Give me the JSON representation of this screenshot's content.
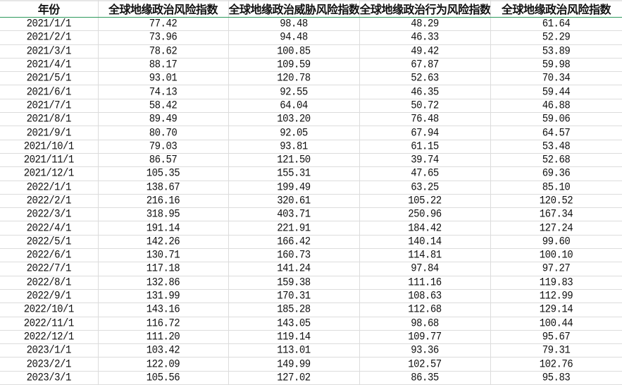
{
  "headers": [
    "年份",
    "全球地缘政治风险指数",
    "全球地缘政治威胁风险指数",
    "全球地缘政治行为风险指数",
    "全球地缘政治风险指数"
  ],
  "rows": [
    [
      "2021/1/1",
      "77.42",
      "98.48",
      "48.29",
      "61.64"
    ],
    [
      "2021/2/1",
      "73.96",
      "94.48",
      "46.33",
      "52.29"
    ],
    [
      "2021/3/1",
      "78.62",
      "100.85",
      "49.42",
      "53.89"
    ],
    [
      "2021/4/1",
      "88.17",
      "109.59",
      "67.87",
      "59.98"
    ],
    [
      "2021/5/1",
      "93.01",
      "120.78",
      "52.63",
      "70.34"
    ],
    [
      "2021/6/1",
      "74.13",
      "92.55",
      "46.35",
      "59.44"
    ],
    [
      "2021/7/1",
      "58.42",
      "64.04",
      "50.72",
      "46.88"
    ],
    [
      "2021/8/1",
      "89.49",
      "103.20",
      "76.48",
      "59.06"
    ],
    [
      "2021/9/1",
      "80.70",
      "92.05",
      "67.94",
      "64.57"
    ],
    [
      "2021/10/1",
      "79.03",
      "93.81",
      "61.15",
      "53.48"
    ],
    [
      "2021/11/1",
      "86.57",
      "121.50",
      "39.74",
      "52.68"
    ],
    [
      "2021/12/1",
      "105.35",
      "155.31",
      "47.65",
      "69.36"
    ],
    [
      "2022/1/1",
      "138.67",
      "199.49",
      "63.25",
      "85.10"
    ],
    [
      "2022/2/1",
      "216.16",
      "320.61",
      "105.22",
      "120.52"
    ],
    [
      "2022/3/1",
      "318.95",
      "403.71",
      "250.96",
      "167.34"
    ],
    [
      "2022/4/1",
      "191.14",
      "221.91",
      "184.42",
      "127.24"
    ],
    [
      "2022/5/1",
      "142.26",
      "166.42",
      "140.14",
      "99.60"
    ],
    [
      "2022/6/1",
      "130.71",
      "160.73",
      "114.81",
      "100.10"
    ],
    [
      "2022/7/1",
      "117.18",
      "141.24",
      "97.84",
      "97.27"
    ],
    [
      "2022/8/1",
      "132.86",
      "159.38",
      "111.16",
      "119.83"
    ],
    [
      "2022/9/1",
      "131.99",
      "170.31",
      "108.63",
      "112.99"
    ],
    [
      "2022/10/1",
      "143.16",
      "185.28",
      "112.68",
      "129.14"
    ],
    [
      "2022/11/1",
      "116.72",
      "143.05",
      "98.68",
      "100.44"
    ],
    [
      "2022/12/1",
      "111.20",
      "119.14",
      "109.77",
      "95.67"
    ],
    [
      "2023/1/1",
      "103.42",
      "113.01",
      "93.36",
      "79.31"
    ],
    [
      "2023/2/1",
      "122.09",
      "149.99",
      "102.57",
      "102.76"
    ],
    [
      "2023/3/1",
      "105.56",
      "127.02",
      "86.35",
      "95.83"
    ]
  ],
  "colors": {
    "header_border": "#2e9a5c",
    "grid": "#dcdcdc"
  }
}
